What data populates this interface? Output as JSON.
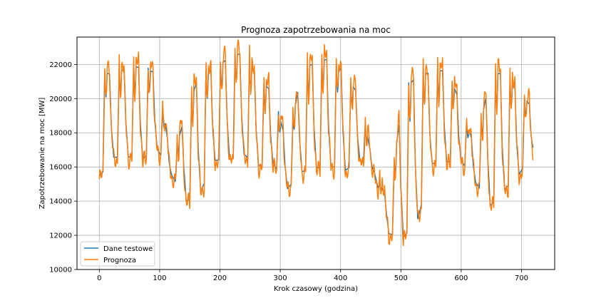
{
  "chart_data": {
    "type": "line",
    "title": "Prognoza zapotrzebowania na moc",
    "xlabel": "Krok czasowy (godzina)",
    "ylabel": "Zapotrzebowanie na moc [MW]",
    "xlim": [
      -37,
      755
    ],
    "ylim": [
      10000,
      23600
    ],
    "xticks": [
      0,
      100,
      200,
      300,
      400,
      500,
      600,
      700
    ],
    "yticks": [
      10000,
      12000,
      14000,
      16000,
      18000,
      20000,
      22000
    ],
    "grid": true,
    "legend_position": "lower-left",
    "daily_anchors": {
      "x": [
        0,
        24,
        48,
        72,
        96,
        120,
        144,
        168,
        192,
        216,
        240,
        264,
        288,
        312,
        336,
        360,
        384,
        408,
        432,
        456,
        480,
        504,
        528,
        552,
        576,
        600,
        624,
        648,
        672,
        696,
        720
      ],
      "troughs": [
        15100,
        16300,
        16300,
        16200,
        16800,
        15500,
        13700,
        14200,
        16100,
        16100,
        16400,
        15800,
        16000,
        14600,
        15400,
        15600,
        15700,
        15500,
        16200,
        15700,
        12000,
        11400,
        12500,
        15900,
        16000,
        16200,
        15000,
        13300,
        14300,
        15300,
        16800
      ],
      "peaks": [
        22000,
        21600,
        22200,
        22100,
        21700,
        16100,
        19600,
        21900,
        22000,
        22800,
        23000,
        21400,
        20600,
        17300,
        22000,
        22500,
        22700,
        21700,
        20300,
        15700,
        14000,
        20800,
        21900,
        21800,
        22000,
        19800,
        17000,
        21800,
        21900,
        20700,
        19500
      ]
    },
    "series": [
      {
        "name": "Dane testowe",
        "color": "#1f77b4"
      },
      {
        "name": "Prognoza",
        "color": "#ff7f0e"
      }
    ]
  }
}
